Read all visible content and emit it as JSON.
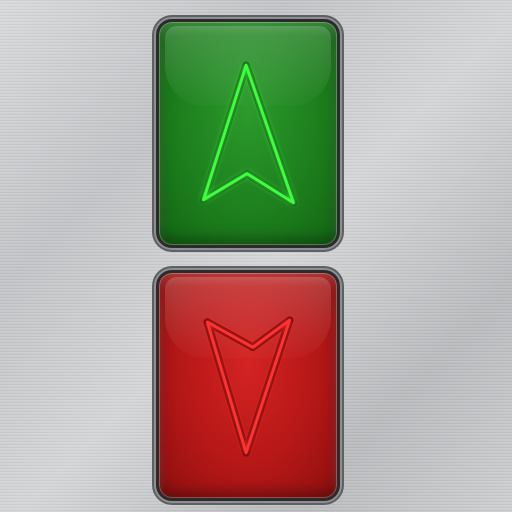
{
  "buttons": {
    "up": {
      "icon": "arrow-up-icon",
      "color": "#1d7f1d",
      "glow_color": "#3dff3d"
    },
    "down": {
      "icon": "arrow-down-icon",
      "color": "#b51717",
      "glow_color": "#ff3030"
    }
  }
}
